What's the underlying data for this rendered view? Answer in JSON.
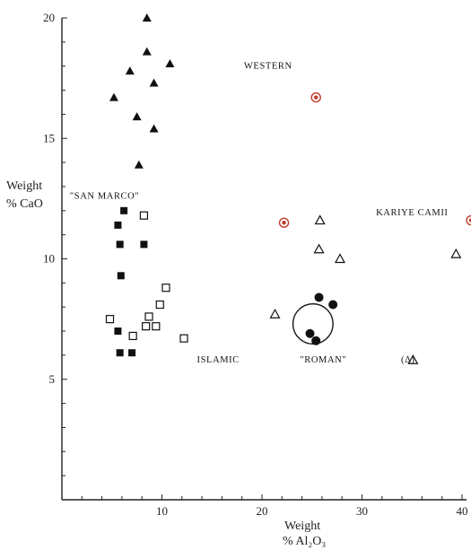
{
  "chart_data": {
    "type": "scatter",
    "title": "",
    "xlabel_lines": [
      "Weight",
      "% Al₂O₃"
    ],
    "ylabel_lines": [
      "Weight",
      "% CaO"
    ],
    "xlim": [
      0,
      40
    ],
    "ylim": [
      0,
      20
    ],
    "x_ticks": [
      10,
      20,
      30,
      40
    ],
    "y_ticks": [
      5,
      10,
      15,
      20
    ],
    "grid": false,
    "series": [
      {
        "name": "WESTERN",
        "marker": "filled-triangle",
        "color": "#111111",
        "points": [
          [
            8.5,
            20
          ],
          [
            8.5,
            18.6
          ],
          [
            6.8,
            17.8
          ],
          [
            10.8,
            18.1
          ],
          [
            9.2,
            17.3
          ],
          [
            5.2,
            16.7
          ],
          [
            7.5,
            15.9
          ],
          [
            9.2,
            15.4
          ],
          [
            7.7,
            13.9
          ]
        ]
      },
      {
        "name": "\"SAN MARCO\"",
        "marker": "filled-square",
        "color": "#111111",
        "points": [
          [
            6.2,
            12.0
          ],
          [
            5.6,
            11.4
          ],
          [
            5.8,
            10.6
          ],
          [
            8.2,
            10.6
          ],
          [
            5.9,
            9.3
          ],
          [
            5.6,
            7.0
          ],
          [
            5.8,
            6.1
          ],
          [
            7.0,
            6.1
          ]
        ]
      },
      {
        "name": "ISLAMIC",
        "marker": "open-square",
        "color": "#111111",
        "points": [
          [
            8.2,
            11.8
          ],
          [
            10.4,
            8.8
          ],
          [
            9.8,
            8.1
          ],
          [
            8.7,
            7.6
          ],
          [
            4.8,
            7.5
          ],
          [
            8.4,
            7.2
          ],
          [
            9.4,
            7.2
          ],
          [
            7.1,
            6.8
          ],
          [
            12.2,
            6.7
          ]
        ]
      },
      {
        "name": "\"ROMAN\"",
        "marker": "filled-circle",
        "color": "#111111",
        "points": [
          [
            25.7,
            8.4
          ],
          [
            27.1,
            8.1
          ],
          [
            24.8,
            6.9
          ],
          [
            25.4,
            6.6
          ]
        ]
      },
      {
        "name": "KARIYE CAMII",
        "marker": "open-triangle",
        "color": "#111111",
        "points": [
          [
            25.8,
            11.6
          ],
          [
            25.7,
            10.4
          ],
          [
            27.8,
            10.0
          ],
          [
            21.3,
            7.7
          ],
          [
            39.4,
            10.2
          ],
          [
            35.1,
            5.8
          ]
        ]
      },
      {
        "name": "",
        "marker": "ringed-dot",
        "color": "#c0392b",
        "points": [
          [
            25.4,
            16.7
          ],
          [
            22.2,
            11.5
          ],
          [
            40.9,
            11.6
          ]
        ]
      }
    ],
    "annotations": [
      {
        "text": "WESTERN",
        "x": 18.2,
        "y": 17.9
      },
      {
        "text": "\"SAN MARCO\"",
        "x": 0.8,
        "y": 12.5
      },
      {
        "text": "KARIYE CAMII",
        "x": 31.4,
        "y": 11.8
      },
      {
        "text": "ISLAMIC",
        "x": 13.5,
        "y": 5.7
      },
      {
        "text": "\"ROMAN\"",
        "x": 23.8,
        "y": 5.7
      },
      {
        "text": "(Δ)",
        "x": 33.9,
        "y": 5.7
      }
    ],
    "highlight": {
      "shape": "circle",
      "center": [
        25.1,
        7.3
      ],
      "radius_in_x_units": 2.0
    }
  }
}
